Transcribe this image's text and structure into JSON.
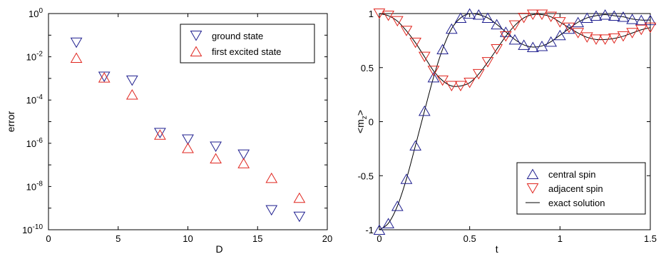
{
  "chart_data": [
    {
      "type": "scatter",
      "xlabel": "D",
      "ylabel": "error",
      "xlim": [
        0,
        20
      ],
      "ylim_exp": [
        -10,
        0
      ],
      "yscale": "log",
      "x_ticks": [
        0,
        5,
        10,
        15,
        20
      ],
      "x_tick_labels": [
        "0",
        "5",
        "10",
        "15",
        "20"
      ],
      "y_tick_exps": [
        0,
        -2,
        -4,
        -6,
        -8,
        -10
      ],
      "y_tick_base": "10",
      "y_tick_exp_labels": [
        "0",
        "-2",
        "-4",
        "-6",
        "-8",
        "-10"
      ],
      "legend_position": "top-right",
      "series": [
        {
          "name": "ground state",
          "marker": "triangle-down",
          "color": "#1f1f8f",
          "x": [
            2,
            4,
            6,
            8,
            10,
            12,
            14,
            16,
            18
          ],
          "y": [
            0.045,
            0.0012,
            0.0008,
            3e-06,
            1.5e-06,
            7e-07,
            3e-07,
            8e-10,
            4e-10
          ]
        },
        {
          "name": "first excited state",
          "marker": "triangle-up",
          "color": "#e0261f",
          "x": [
            2,
            4,
            6,
            8,
            10,
            12,
            14,
            16,
            18
          ],
          "y": [
            0.009,
            0.0011,
            0.00018,
            2.5e-06,
            6e-07,
            2e-07,
            1.2e-07,
            2.5e-08,
            3e-09
          ]
        }
      ]
    },
    {
      "type": "line",
      "xlabel": "t",
      "ylabel_main": "<m",
      "ylabel_sub": "z",
      "ylabel_end": ">",
      "xlim": [
        0,
        1.5
      ],
      "ylim": [
        -1,
        1
      ],
      "x_ticks": [
        0,
        0.5,
        1,
        1.5
      ],
      "x_tick_labels": [
        "0",
        "0.5",
        "1",
        "1.5"
      ],
      "y_ticks": [
        -1,
        -0.5,
        0,
        0.5,
        1
      ],
      "y_tick_labels": [
        "-1",
        "-0.5",
        "0",
        "0.5",
        "1"
      ],
      "legend_position": "bottom-right",
      "series": [
        {
          "name": "central spin",
          "marker": "triangle-up",
          "color": "#1f1f8f",
          "x": [
            0,
            0.05,
            0.1,
            0.15,
            0.2,
            0.25,
            0.3,
            0.35,
            0.4,
            0.45,
            0.5,
            0.55,
            0.6,
            0.65,
            0.7,
            0.75,
            0.8,
            0.85,
            0.9,
            0.95,
            1.0,
            1.05,
            1.1,
            1.15,
            1.2,
            1.25,
            1.3,
            1.35,
            1.4,
            1.45,
            1.5
          ],
          "y": [
            -1.0,
            -0.94,
            -0.78,
            -0.53,
            -0.22,
            0.1,
            0.41,
            0.67,
            0.86,
            0.96,
            1.0,
            0.99,
            0.96,
            0.9,
            0.83,
            0.76,
            0.71,
            0.69,
            0.7,
            0.74,
            0.8,
            0.86,
            0.92,
            0.96,
            0.98,
            0.99,
            0.98,
            0.97,
            0.95,
            0.94,
            0.94
          ]
        },
        {
          "name": "adjacent spin",
          "marker": "triangle-down",
          "color": "#e0261f",
          "x": [
            0,
            0.05,
            0.1,
            0.15,
            0.2,
            0.25,
            0.3,
            0.35,
            0.4,
            0.45,
            0.5,
            0.55,
            0.6,
            0.65,
            0.7,
            0.75,
            0.8,
            0.85,
            0.9,
            0.95,
            1.0,
            1.05,
            1.1,
            1.15,
            1.2,
            1.25,
            1.3,
            1.35,
            1.4,
            1.45,
            1.5
          ],
          "y": [
            1.0,
            0.98,
            0.93,
            0.84,
            0.73,
            0.6,
            0.47,
            0.38,
            0.33,
            0.33,
            0.36,
            0.44,
            0.55,
            0.67,
            0.79,
            0.89,
            0.96,
            0.99,
            0.99,
            0.97,
            0.92,
            0.87,
            0.82,
            0.78,
            0.76,
            0.76,
            0.77,
            0.79,
            0.82,
            0.85,
            0.87
          ]
        },
        {
          "name": "exact solution",
          "style": "line",
          "color": "#000000"
        }
      ]
    }
  ]
}
